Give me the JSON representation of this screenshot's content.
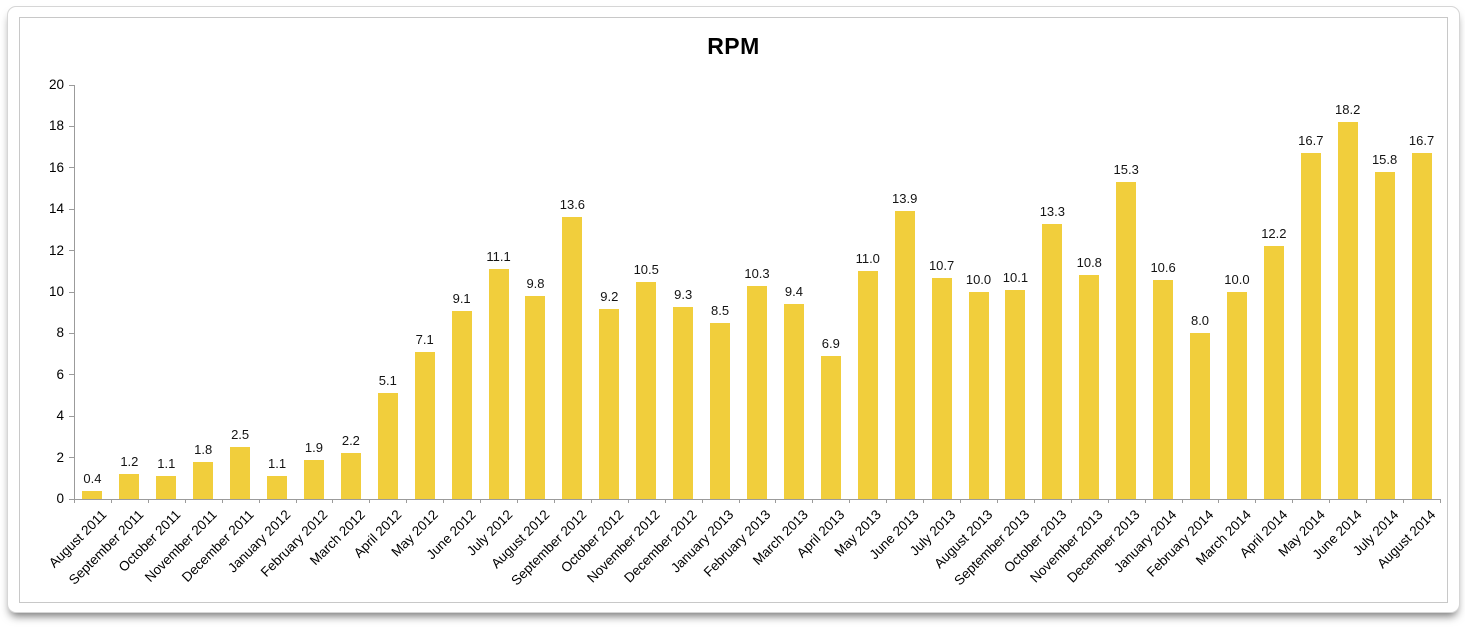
{
  "chart_data": {
    "type": "bar",
    "title": "RPM",
    "xlabel": "",
    "ylabel": "",
    "ylim": [
      0,
      20
    ],
    "y_ticks": [
      0,
      2,
      4,
      6,
      8,
      10,
      12,
      14,
      16,
      18,
      20
    ],
    "grid": false,
    "legend": "none",
    "value_labels_shown": true,
    "value_label_decimals": 1,
    "categories": [
      "August 2011",
      "September 2011",
      "October 2011",
      "November 2011",
      "December 2011",
      "January 2012",
      "February 2012",
      "March 2012",
      "April 2012",
      "May 2012",
      "June 2012",
      "July 2012",
      "August 2012",
      "September 2012",
      "October 2012",
      "November 2012",
      "December 2012",
      "January 2013",
      "February 2013",
      "March 2013",
      "April 2013",
      "May 2013",
      "June 2013",
      "July 2013",
      "August 2013",
      "September 2013",
      "October 2013",
      "November 2013",
      "December 2013",
      "January 2014",
      "February 2014",
      "March 2014",
      "April 2014",
      "May 2014",
      "June 2014",
      "July 2014",
      "August 2014"
    ],
    "values": [
      0.4,
      1.2,
      1.1,
      1.8,
      2.5,
      1.1,
      1.9,
      2.2,
      5.1,
      7.1,
      9.1,
      11.1,
      9.8,
      13.6,
      9.2,
      10.5,
      9.3,
      8.5,
      10.3,
      9.4,
      6.9,
      11.0,
      13.9,
      10.7,
      10.0,
      10.1,
      13.3,
      10.8,
      15.3,
      10.6,
      8.0,
      10.0,
      12.2,
      16.7,
      18.2,
      15.8,
      16.7
    ]
  },
  "colors": {
    "bar_fill": "#F1CE3C",
    "axis_line": "#9b9b9b",
    "text": "#000000",
    "value_label_text": "#141414",
    "card_border": "#d6d6d6",
    "frame_border": "#c8c8c8",
    "background": "#ffffff"
  }
}
